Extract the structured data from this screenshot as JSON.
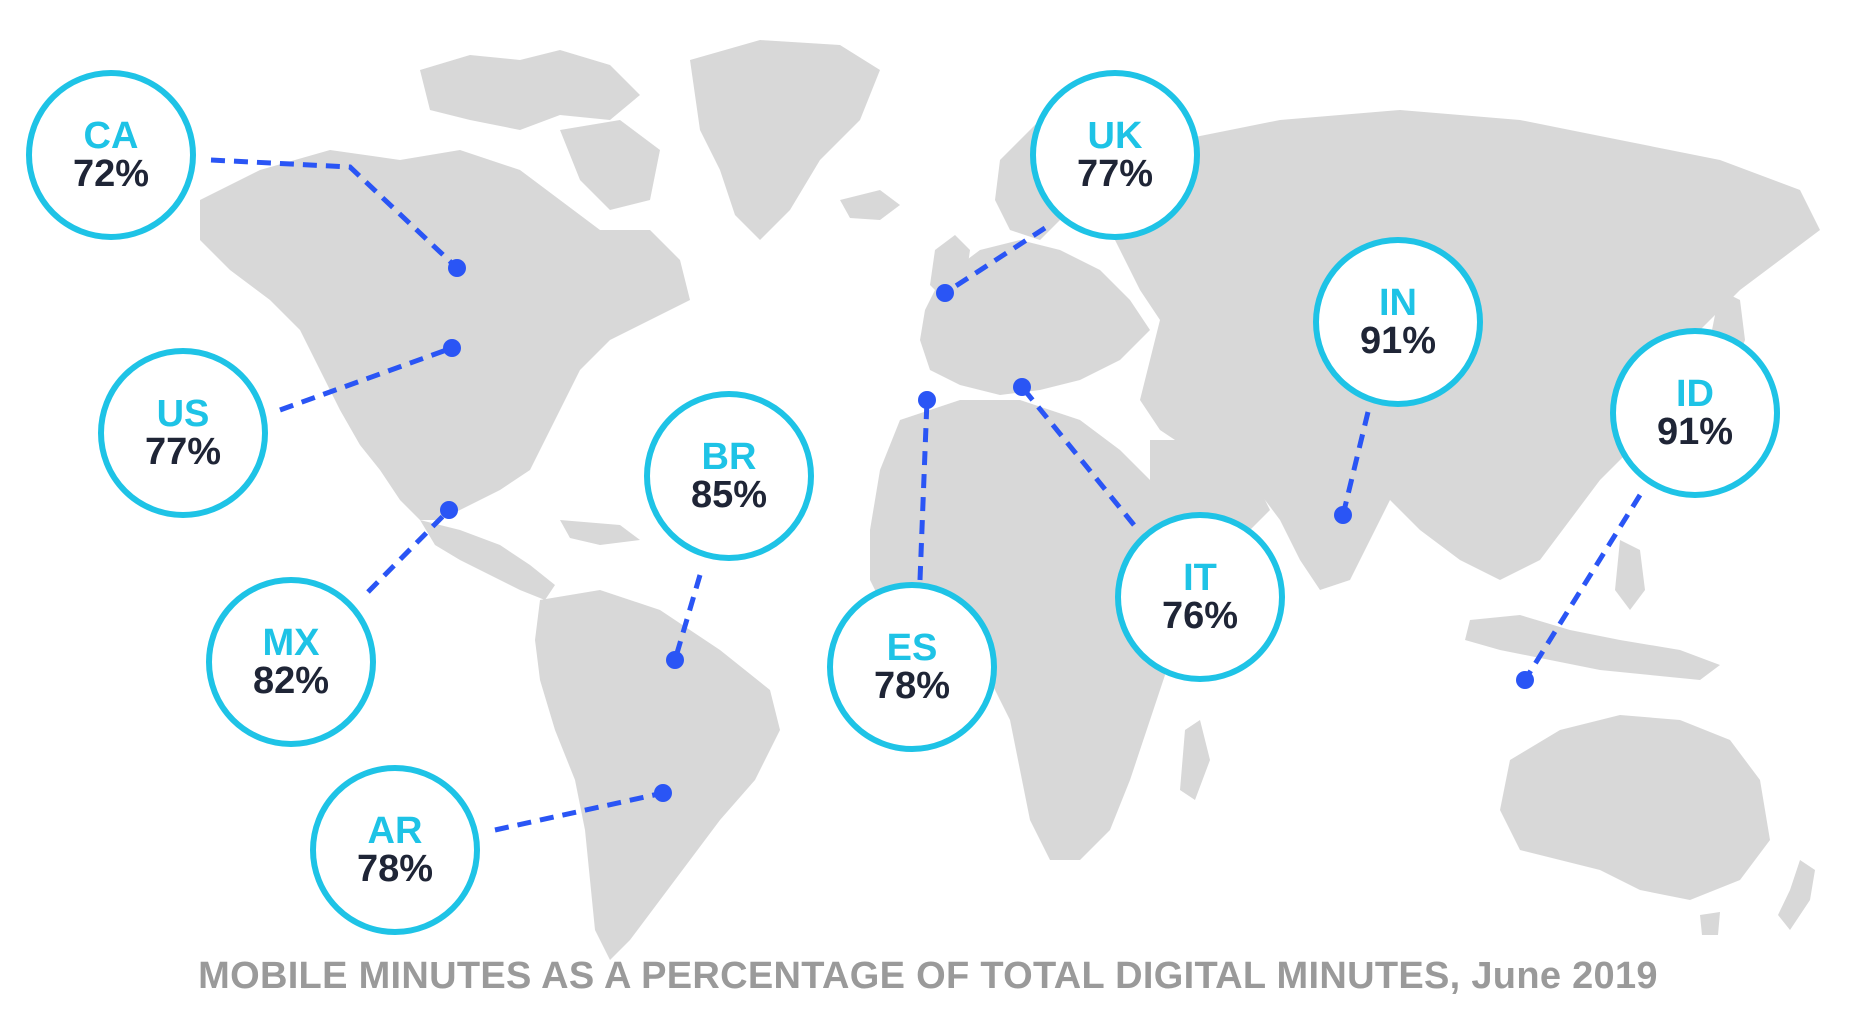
{
  "map": {
    "land_color": "#d8d8d8",
    "ring_color": "#1ec3e6",
    "code_color": "#1ec3e6",
    "value_color": "#1f2536",
    "connector_color": "#2a55f5"
  },
  "callouts": [
    {
      "code": "CA",
      "value": "72%"
    },
    {
      "code": "US",
      "value": "77%"
    },
    {
      "code": "MX",
      "value": "82%"
    },
    {
      "code": "AR",
      "value": "78%"
    },
    {
      "code": "BR",
      "value": "85%"
    },
    {
      "code": "ES",
      "value": "78%"
    },
    {
      "code": "UK",
      "value": "77%"
    },
    {
      "code": "IT",
      "value": "76%"
    },
    {
      "code": "IN",
      "value": "91%"
    },
    {
      "code": "ID",
      "value": "91%"
    }
  ],
  "caption": "MOBILE MINUTES AS A PERCENTAGE OF TOTAL DIGITAL MINUTES, June 2019"
}
